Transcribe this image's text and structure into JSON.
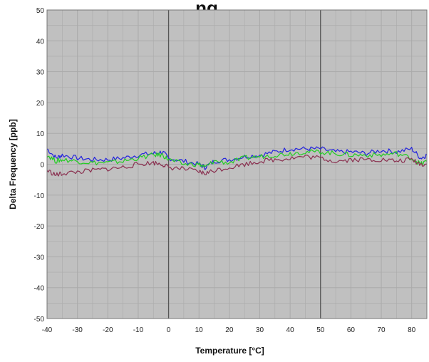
{
  "chart_data": {
    "type": "line",
    "title": "…ng…",
    "xlabel": "Temperature [°C]",
    "ylabel": "Delta Frequency [ppb]",
    "xlim": [
      -40,
      85
    ],
    "ylim": [
      -50,
      50
    ],
    "x_ticks": [
      -40,
      -30,
      -20,
      -10,
      0,
      10,
      20,
      30,
      40,
      50,
      60,
      70,
      80
    ],
    "y_ticks": [
      50,
      40,
      30,
      20,
      10,
      0,
      -10,
      -20,
      -30,
      -40,
      -50
    ],
    "x_tick_labels": [
      "-40",
      "-30",
      "-20",
      "-10",
      "0",
      "10",
      "20",
      "30",
      "40",
      "50",
      "60",
      "70",
      "80"
    ],
    "y_tick_labels": [
      "50",
      "40",
      "30",
      "20",
      "10",
      "0",
      "-10",
      "-20",
      "-30",
      "-40",
      "-50"
    ],
    "grid": true,
    "legend": "none",
    "reference_lines_x": [
      0,
      50
    ],
    "x": [
      -40,
      -37,
      -35,
      -30,
      -25,
      -20,
      -15,
      -10,
      -5,
      -2,
      0,
      5,
      10,
      12,
      15,
      20,
      25,
      30,
      35,
      40,
      45,
      50,
      55,
      60,
      65,
      70,
      75,
      80,
      83,
      85
    ],
    "series": [
      {
        "color": "#2222dd",
        "values": [
          5,
          2,
          3,
          2,
          1.5,
          1.5,
          2,
          3,
          3.5,
          4,
          2,
          1,
          0,
          -1,
          1,
          1.5,
          2.5,
          3,
          4,
          5,
          5,
          5,
          4,
          4,
          3.5,
          4.5,
          4,
          5,
          2,
          3
        ]
      },
      {
        "color": "#22cc22",
        "values": [
          3,
          1,
          1.5,
          1,
          0.5,
          0.5,
          1,
          2,
          3,
          3,
          1.5,
          0,
          0,
          -1,
          1,
          0.5,
          2,
          2.5,
          3,
          3.5,
          4,
          4,
          3.5,
          3,
          3,
          3,
          3.5,
          2,
          0,
          1
        ]
      },
      {
        "color": "#8a3050",
        "values": [
          -2,
          -3.5,
          -3,
          -2.5,
          -2,
          -1.5,
          -1,
          0,
          0.5,
          0,
          -1,
          -1.5,
          -2.5,
          -3,
          -2,
          -1,
          0,
          1,
          1.5,
          2,
          2.5,
          2,
          1,
          1.5,
          1.5,
          1.5,
          1,
          1.5,
          0,
          0
        ]
      }
    ],
    "colors": {
      "plot_background": "#c0c0c0",
      "grid": "#aaaaaa",
      "reference_line": "#555555"
    }
  }
}
